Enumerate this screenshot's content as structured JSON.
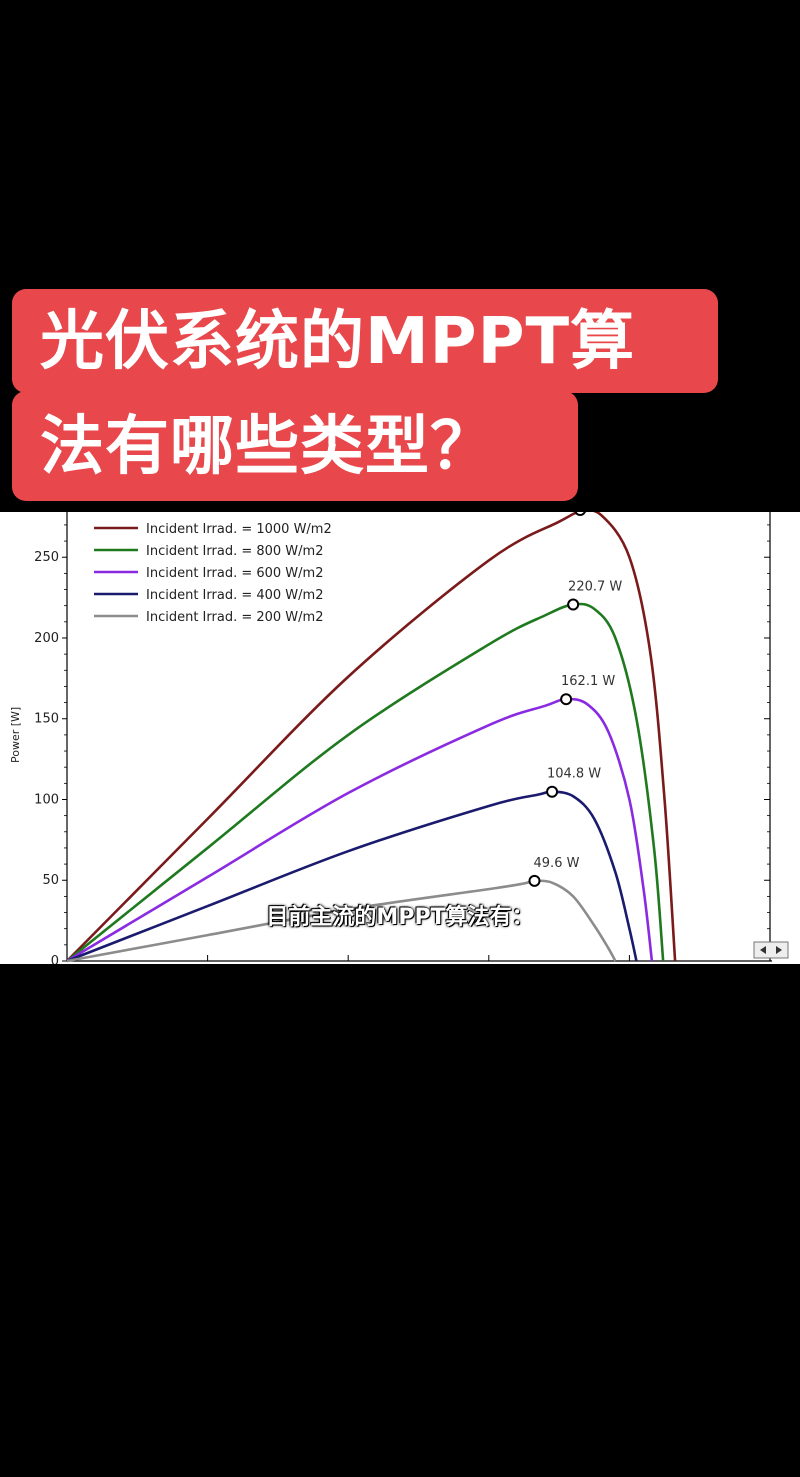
{
  "title": {
    "line1": "光伏系统的MPPT算",
    "line2": "法有哪些类型？"
  },
  "caption": "目前主流的MPPT算法有：",
  "colors": {
    "banner": "#e8474b",
    "s1000": "#7a1a1a",
    "s800": "#1f7a1f",
    "s600": "#8a2be2",
    "s400": "#1a1a6e",
    "s200": "#8c8c8c"
  },
  "chart_data": {
    "type": "line",
    "ylabel": "Power [W]",
    "ylim": [
      0,
      278
    ],
    "y_ticks": [
      "0",
      "50",
      "100",
      "150",
      "200",
      "250"
    ],
    "legend_position": "top-left",
    "series": [
      {
        "name": "Incident Irrad. = 1000 W/m2",
        "color": "#7a1a1a",
        "points": [
          [
            0,
            0
          ],
          [
            0.2,
            88
          ],
          [
            0.4,
            176
          ],
          [
            0.6,
            248
          ],
          [
            0.7,
            272
          ],
          [
            0.73,
            278
          ],
          [
            0.76,
            276
          ],
          [
            0.8,
            250
          ],
          [
            0.83,
            190
          ],
          [
            0.85,
            100
          ],
          [
            0.865,
            0
          ]
        ]
      },
      {
        "name": "Incident Irrad. = 800 W/m2",
        "color": "#1f7a1f",
        "points": [
          [
            0,
            0
          ],
          [
            0.2,
            70
          ],
          [
            0.4,
            140
          ],
          [
            0.6,
            196
          ],
          [
            0.68,
            214
          ],
          [
            0.72,
            220.7
          ],
          [
            0.75,
            218
          ],
          [
            0.78,
            200
          ],
          [
            0.81,
            150
          ],
          [
            0.835,
            70
          ],
          [
            0.848,
            0
          ]
        ]
      },
      {
        "name": "Incident Irrad. = 600 W/m2",
        "color": "#8a2be2",
        "points": [
          [
            0,
            0
          ],
          [
            0.2,
            52
          ],
          [
            0.4,
            104
          ],
          [
            0.6,
            146
          ],
          [
            0.68,
            158
          ],
          [
            0.71,
            162.1
          ],
          [
            0.74,
            159
          ],
          [
            0.77,
            142
          ],
          [
            0.8,
            100
          ],
          [
            0.82,
            45
          ],
          [
            0.832,
            0
          ]
        ]
      },
      {
        "name": "Incident Irrad. = 400 W/m2",
        "color": "#1a1a6e",
        "points": [
          [
            0,
            0
          ],
          [
            0.2,
            34
          ],
          [
            0.4,
            68
          ],
          [
            0.6,
            96
          ],
          [
            0.67,
            103
          ],
          [
            0.69,
            104.8
          ],
          [
            0.72,
            102
          ],
          [
            0.75,
            88
          ],
          [
            0.78,
            55
          ],
          [
            0.8,
            20
          ],
          [
            0.81,
            0
          ]
        ]
      },
      {
        "name": "Incident Irrad. = 200 W/m2",
        "color": "#8c8c8c",
        "points": [
          [
            0,
            0
          ],
          [
            0.2,
            16
          ],
          [
            0.4,
            32
          ],
          [
            0.6,
            44.5
          ],
          [
            0.65,
            48
          ],
          [
            0.665,
            49.6
          ],
          [
            0.69,
            48.5
          ],
          [
            0.72,
            40
          ],
          [
            0.75,
            22
          ],
          [
            0.77,
            8
          ],
          [
            0.78,
            0
          ]
        ]
      }
    ],
    "annotations": [
      {
        "series": 1,
        "x": 0.72,
        "y": 220.7,
        "label": "220.7 W"
      },
      {
        "series": 2,
        "x": 0.71,
        "y": 162.1,
        "label": "162.1 W"
      },
      {
        "series": 3,
        "x": 0.69,
        "y": 104.8,
        "label": "104.8 W"
      },
      {
        "series": 4,
        "x": 0.665,
        "y": 49.6,
        "label": "49.6 W"
      }
    ],
    "peak_marker_1000": {
      "series": 0,
      "x": 0.73,
      "y": 278
    }
  }
}
